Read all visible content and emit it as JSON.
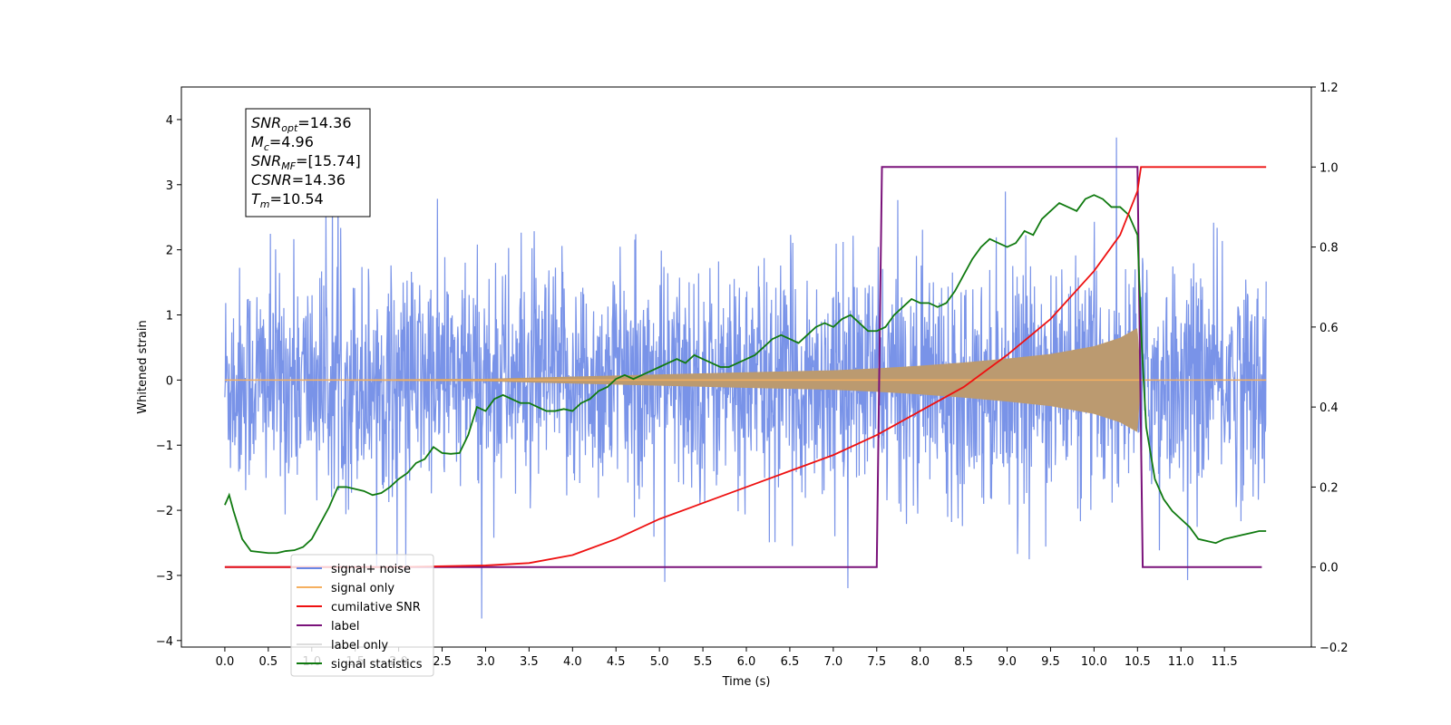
{
  "chart_data": {
    "type": "line",
    "xlabel": "Time (s)",
    "ylabel": "Whitened strain",
    "xlim": [
      -0.5,
      12.5
    ],
    "ylim_left": [
      -4.1,
      4.5
    ],
    "ylim_right": [
      -0.2,
      1.2
    ],
    "x_ticks": [
      0.0,
      0.5,
      1.0,
      1.5,
      2.0,
      2.5,
      3.0,
      3.5,
      4.0,
      4.5,
      5.0,
      5.5,
      6.0,
      6.5,
      7.0,
      7.5,
      8.0,
      8.5,
      9.0,
      9.5,
      10.0,
      10.5,
      11.0,
      11.5
    ],
    "x_tick_labels": [
      "0.0",
      "0.5",
      "1.0",
      "1.5",
      "2.0",
      "2.5",
      "3.0",
      "3.5",
      "4.0",
      "4.5",
      "5.0",
      "5.5",
      "6.0",
      "6.5",
      "7.0",
      "7.5",
      "8.0",
      "8.5",
      "9.0",
      "9.5",
      "10.0",
      "10.5",
      "11.0",
      "11.5"
    ],
    "y_left_ticks": [
      -4,
      -3,
      -2,
      -1,
      0,
      1,
      2,
      3,
      4
    ],
    "y_left_tick_labels": [
      "−4",
      "−3",
      "−2",
      "−1",
      "0",
      "1",
      "2",
      "3",
      "4"
    ],
    "y_right_ticks": [
      -0.2,
      0.0,
      0.2,
      0.4,
      0.6,
      0.8,
      1.0,
      1.2
    ],
    "y_right_tick_labels": [
      "−0.2",
      "0.0",
      "0.2",
      "0.4",
      "0.6",
      "0.8",
      "1.0",
      "1.2"
    ],
    "grid": false,
    "legend_position": "lower-left",
    "series": [
      {
        "name": "signal+ noise",
        "axis": "left",
        "color": "#6a87e6",
        "description_range": "noise std ~0.85, t 0 to 12",
        "x_range": [
          0.0,
          11.98
        ]
      },
      {
        "name": "signal only",
        "axis": "left",
        "color": "#f5b060",
        "chirp_merger_time": 10.54,
        "envelope": [
          [
            0.0,
            0.0
          ],
          [
            3.0,
            0.02
          ],
          [
            4.5,
            0.07
          ],
          [
            6.0,
            0.12
          ],
          [
            7.0,
            0.15
          ],
          [
            7.5,
            0.18
          ],
          [
            8.0,
            0.22
          ],
          [
            8.5,
            0.27
          ],
          [
            9.0,
            0.33
          ],
          [
            9.5,
            0.4
          ],
          [
            10.0,
            0.52
          ],
          [
            10.3,
            0.65
          ],
          [
            10.5,
            0.8
          ],
          [
            10.54,
            0.0
          ],
          [
            11.98,
            0.0
          ]
        ]
      },
      {
        "name": "cumilative SNR",
        "axis": "right",
        "color": "#ee1111",
        "x": [
          0.0,
          2.0,
          3.0,
          3.5,
          4.0,
          4.5,
          5.0,
          5.5,
          6.0,
          6.5,
          7.0,
          7.5,
          8.0,
          8.5,
          9.0,
          9.5,
          10.0,
          10.3,
          10.5,
          10.54,
          11.98
        ],
        "y": [
          0.0,
          0.0,
          0.004,
          0.01,
          0.03,
          0.07,
          0.12,
          0.16,
          0.2,
          0.24,
          0.28,
          0.33,
          0.39,
          0.45,
          0.53,
          0.62,
          0.74,
          0.83,
          0.94,
          1.0,
          1.0
        ]
      },
      {
        "name": "label",
        "axis": "right",
        "color": "#7a127a",
        "x": [
          0.0,
          7.5,
          7.56,
          10.5,
          10.56,
          11.93
        ],
        "y": [
          0.0,
          0.0,
          1.0,
          1.0,
          0.0,
          0.0
        ]
      },
      {
        "name": "label only",
        "axis": "right",
        "color": "#dddddd",
        "x": [],
        "y": []
      },
      {
        "name": "signal statistics",
        "axis": "right",
        "color": "#107a10",
        "x": [
          0.0,
          0.05,
          0.1,
          0.2,
          0.3,
          0.5,
          0.6,
          0.7,
          0.8,
          0.9,
          1.0,
          1.1,
          1.2,
          1.3,
          1.4,
          1.5,
          1.6,
          1.7,
          1.8,
          1.9,
          2.0,
          2.1,
          2.2,
          2.3,
          2.4,
          2.5,
          2.6,
          2.7,
          2.8,
          2.9,
          3.0,
          3.1,
          3.2,
          3.3,
          3.4,
          3.5,
          3.6,
          3.7,
          3.8,
          3.9,
          4.0,
          4.1,
          4.2,
          4.3,
          4.4,
          4.5,
          4.6,
          4.7,
          4.8,
          4.9,
          5.0,
          5.1,
          5.2,
          5.3,
          5.4,
          5.5,
          5.6,
          5.7,
          5.8,
          5.9,
          6.0,
          6.1,
          6.2,
          6.3,
          6.4,
          6.5,
          6.6,
          6.7,
          6.8,
          6.9,
          7.0,
          7.1,
          7.2,
          7.3,
          7.4,
          7.5,
          7.6,
          7.7,
          7.8,
          7.9,
          8.0,
          8.1,
          8.2,
          8.3,
          8.4,
          8.5,
          8.6,
          8.7,
          8.8,
          8.9,
          9.0,
          9.1,
          9.2,
          9.3,
          9.4,
          9.5,
          9.6,
          9.7,
          9.8,
          9.9,
          10.0,
          10.1,
          10.2,
          10.3,
          10.4,
          10.5,
          10.55,
          10.6,
          10.7,
          10.8,
          10.9,
          11.0,
          11.1,
          11.2,
          11.3,
          11.4,
          11.5,
          11.6,
          11.7,
          11.8,
          11.9,
          11.98
        ],
        "y": [
          0.155,
          0.18,
          0.14,
          0.07,
          0.04,
          0.035,
          0.035,
          0.04,
          0.042,
          0.05,
          0.07,
          0.11,
          0.15,
          0.2,
          0.2,
          0.195,
          0.19,
          0.18,
          0.185,
          0.2,
          0.22,
          0.235,
          0.26,
          0.27,
          0.3,
          0.285,
          0.283,
          0.285,
          0.33,
          0.4,
          0.39,
          0.42,
          0.43,
          0.42,
          0.41,
          0.41,
          0.4,
          0.39,
          0.39,
          0.395,
          0.39,
          0.41,
          0.42,
          0.44,
          0.45,
          0.47,
          0.48,
          0.47,
          0.48,
          0.49,
          0.5,
          0.51,
          0.52,
          0.51,
          0.53,
          0.52,
          0.51,
          0.5,
          0.5,
          0.51,
          0.52,
          0.53,
          0.55,
          0.57,
          0.58,
          0.57,
          0.56,
          0.58,
          0.6,
          0.61,
          0.6,
          0.62,
          0.63,
          0.61,
          0.59,
          0.59,
          0.6,
          0.63,
          0.65,
          0.67,
          0.66,
          0.66,
          0.65,
          0.66,
          0.69,
          0.73,
          0.77,
          0.8,
          0.82,
          0.81,
          0.8,
          0.81,
          0.84,
          0.83,
          0.87,
          0.89,
          0.91,
          0.9,
          0.89,
          0.92,
          0.93,
          0.92,
          0.9,
          0.9,
          0.88,
          0.83,
          0.55,
          0.35,
          0.22,
          0.17,
          0.14,
          0.12,
          0.1,
          0.07,
          0.065,
          0.06,
          0.07,
          0.075,
          0.08,
          0.085,
          0.09,
          0.09
        ]
      }
    ],
    "legend_entries": [
      "signal+ noise",
      "signal only",
      "cumilative SNR",
      "label",
      "label only",
      "signal statistics"
    ],
    "info_box": {
      "lines": [
        {
          "base": "SNR",
          "sub": "opt",
          "value": "=14.36"
        },
        {
          "base": "M",
          "sub": "c",
          "value": "=4.96"
        },
        {
          "base": "SNR",
          "sub": "MF",
          "value": "=[15.74]"
        },
        {
          "base": "CSNR",
          "sub": "",
          "value": "=14.36"
        },
        {
          "base": "T",
          "sub": "m",
          "value": "=10.54"
        }
      ]
    }
  }
}
